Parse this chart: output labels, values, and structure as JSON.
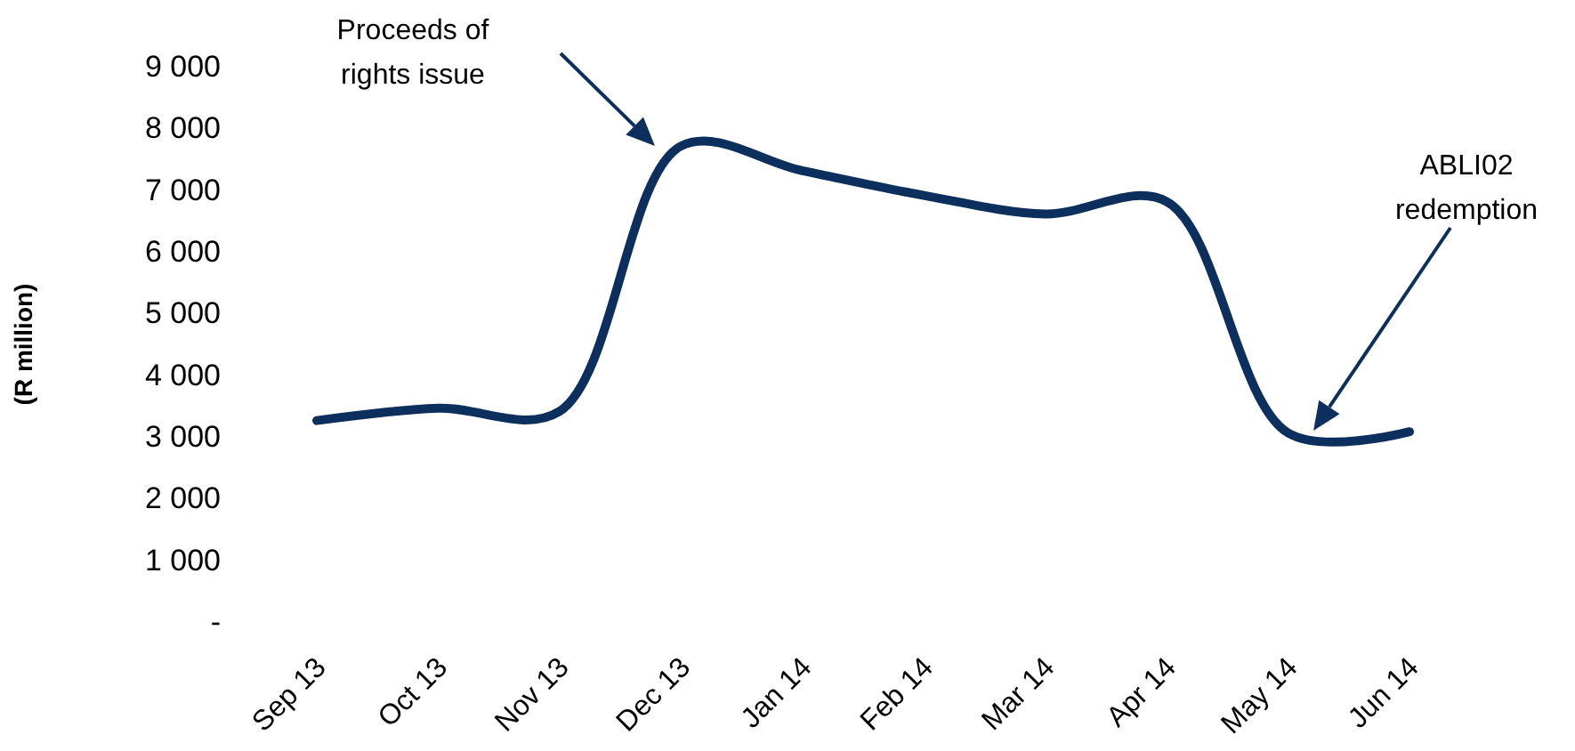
{
  "chart_data": {
    "type": "line",
    "ylabel": "(R million)",
    "categories": [
      "Sep 13",
      "Oct 13",
      "Nov 13",
      "Dec 13",
      "Jan 14",
      "Feb 14",
      "Mar 14",
      "Apr 14",
      "May 14",
      "Jun 14"
    ],
    "series": [
      {
        "color": "#0d2f5e",
        "values": [
          3250,
          3450,
          3400,
          7700,
          7300,
          6900,
          6600,
          6800,
          3050,
          3070
        ]
      }
    ],
    "ylim": [
      0,
      9000
    ],
    "yticks": [
      {
        "value": 0,
        "label": "-"
      },
      {
        "value": 1000,
        "label": "1 000"
      },
      {
        "value": 2000,
        "label": "2 000"
      },
      {
        "value": 3000,
        "label": "3 000"
      },
      {
        "value": 4000,
        "label": "4 000"
      },
      {
        "value": 5000,
        "label": "5 000"
      },
      {
        "value": 6000,
        "label": "6 000"
      },
      {
        "value": 7000,
        "label": "7 000"
      },
      {
        "value": 8000,
        "label": "8 000"
      },
      {
        "value": 9000,
        "label": "9 000"
      }
    ],
    "annotations": [
      "Proceeds of rights issue",
      "ABLI02 redemption"
    ],
    "grid": false,
    "marker": "none",
    "line_style": "solid"
  }
}
